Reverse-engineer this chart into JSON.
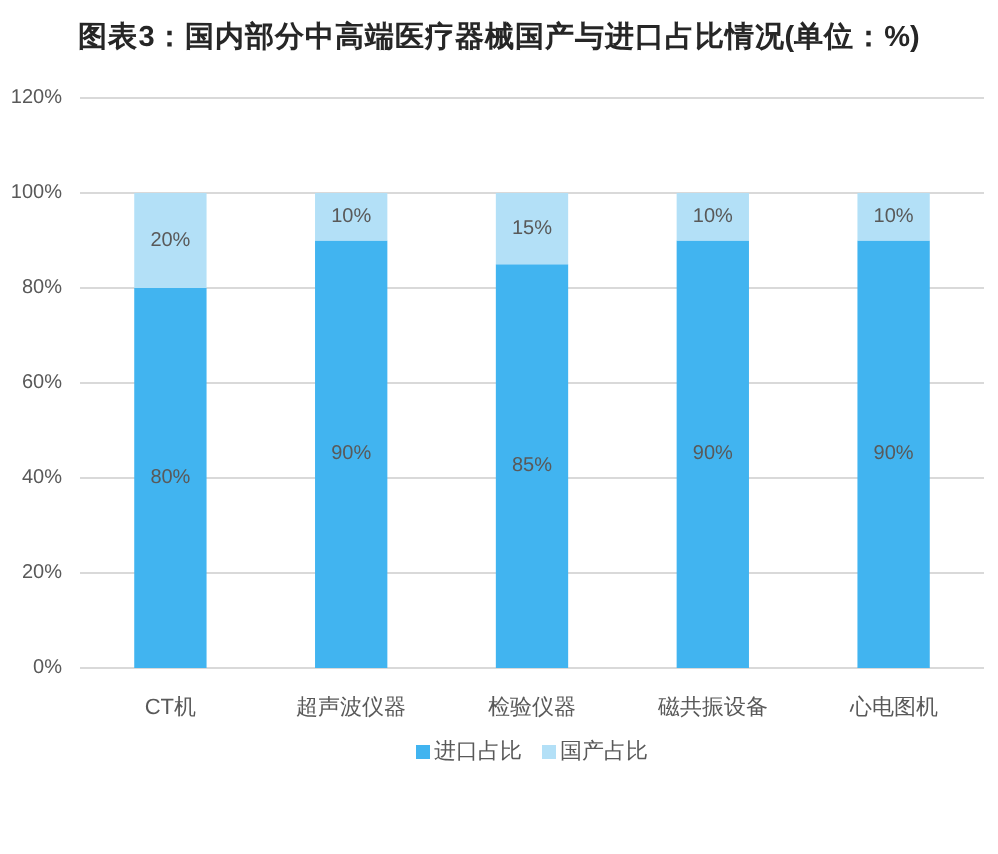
{
  "chart_data": {
    "type": "bar",
    "title": "图表3：国内部分中高端医疗器械国产与进口占比情况(单位：%)",
    "categories": [
      "CT机",
      "超声波仪器",
      "检验仪器",
      "磁共振设备",
      "心电图机"
    ],
    "stacked": true,
    "series": [
      {
        "name": "进口占比",
        "color": "#41b4f0",
        "values": [
          80,
          90,
          85,
          90,
          90
        ],
        "value_labels": [
          "80%",
          "90%",
          "85%",
          "90%",
          "90%"
        ]
      },
      {
        "name": "国产占比",
        "color": "#b3e0f7",
        "values": [
          20,
          10,
          15,
          10,
          10
        ],
        "value_labels": [
          "20%",
          "10%",
          "15%",
          "10%",
          "10%"
        ]
      }
    ],
    "ylim": [
      0,
      120
    ],
    "yticks": [
      {
        "value": 0,
        "label": "0%"
      },
      {
        "value": 20,
        "label": "20%"
      },
      {
        "value": 40,
        "label": "40%"
      },
      {
        "value": 60,
        "label": "60%"
      },
      {
        "value": 80,
        "label": "80%"
      },
      {
        "value": 100,
        "label": "100%"
      },
      {
        "value": 120,
        "label": "120%"
      }
    ],
    "grid": "y",
    "legend": "bottom"
  }
}
